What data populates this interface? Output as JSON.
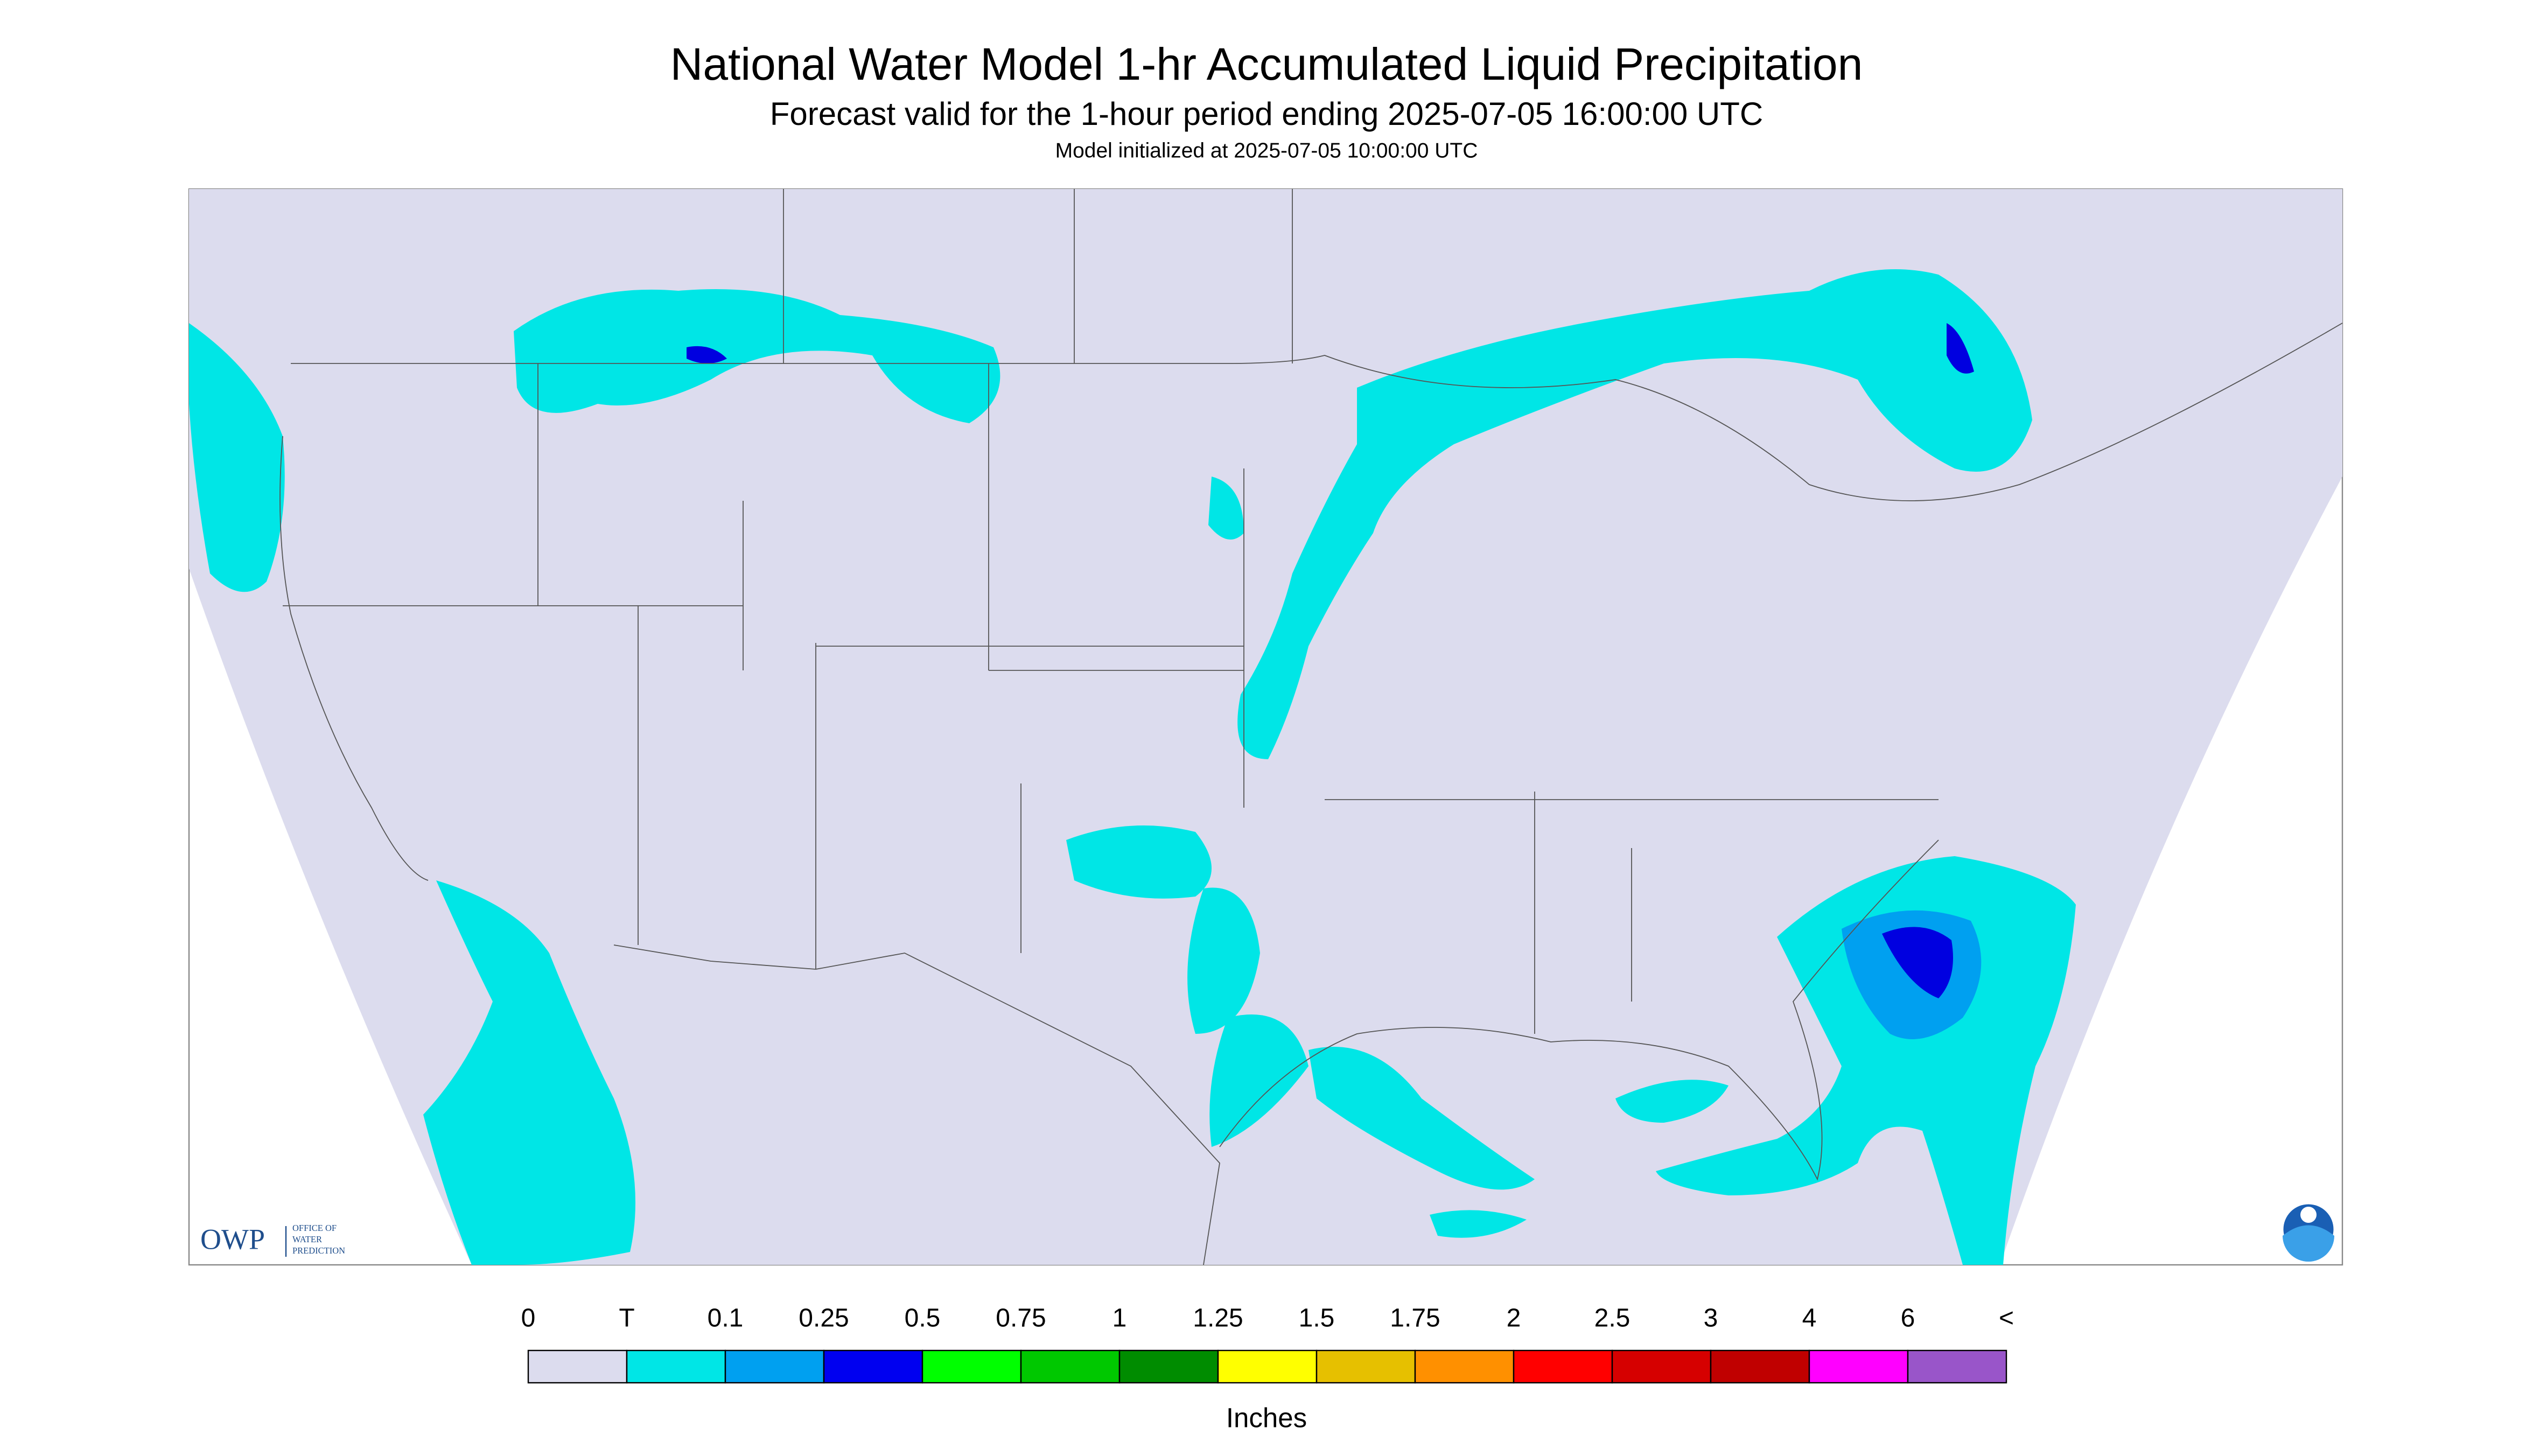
{
  "header": {
    "title": "National Water Model 1-hr Accumulated Liquid Precipitation",
    "subtitle": "Forecast valid for the 1-hour period ending 2025-07-05 16:00:00 UTC",
    "initialized": "Model initialized at 2025-07-05 10:00:00 UTC"
  },
  "legend": {
    "labels": [
      "0",
      "T",
      "0.1",
      "0.25",
      "0.5",
      "0.75",
      "1",
      "1.25",
      "1.5",
      "1.75",
      "2",
      "2.5",
      "3",
      "4",
      "6",
      "<"
    ],
    "colors": [
      "#dcdcee",
      "#00e6e6",
      "#00a0f0",
      "#0000f0",
      "#00ff00",
      "#00c800",
      "#008c00",
      "#ffff00",
      "#e6c000",
      "#ff9000",
      "#ff0000",
      "#d60000",
      "#c00000",
      "#ff00ff",
      "#9955c9"
    ],
    "unit": "Inches"
  },
  "logo": {
    "acronym": "OWP",
    "name": [
      "OFFICE OF",
      "WATER",
      "PREDICTION"
    ]
  }
}
